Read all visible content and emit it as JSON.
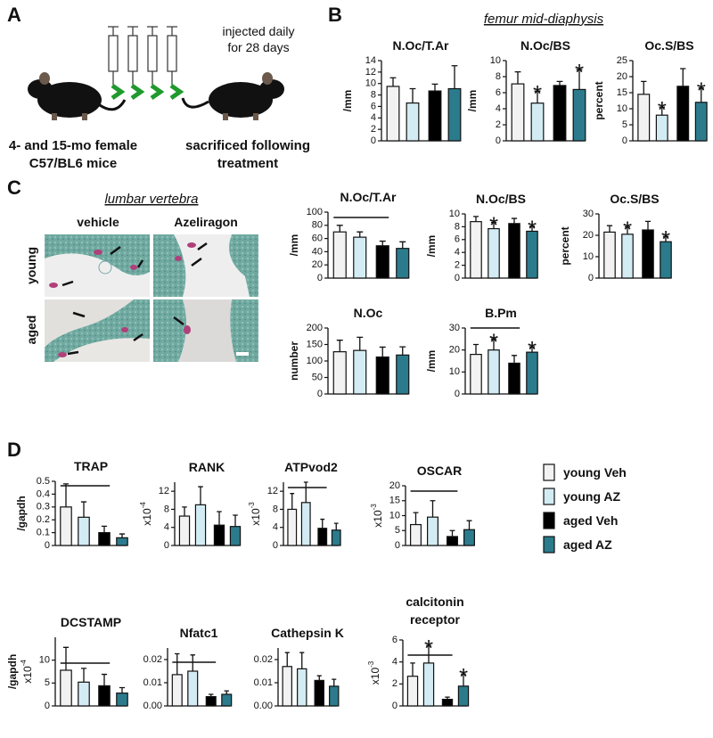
{
  "panel_labels": [
    "A",
    "B",
    "C",
    "D"
  ],
  "panel_a": {
    "injection": [
      "injected daily",
      "for 28 days"
    ],
    "mice": [
      "4- and 15-mo female",
      "C57/BL6 mice"
    ],
    "endpoint": [
      "sacrificed following",
      "treatment"
    ]
  },
  "panel_b": {
    "heading": "femur mid-diaphysis"
  },
  "panel_c": {
    "heading": "lumbar vertebra",
    "columns": [
      "vehicle",
      "Azeliragon"
    ],
    "rows": [
      "young",
      "aged"
    ]
  },
  "legend": [
    {
      "name": "young Veh",
      "color": "#f2f2f2"
    },
    {
      "name": "young AZ",
      "color": "#d3ecf4"
    },
    {
      "name": "aged Veh",
      "color": "#000000"
    },
    {
      "name": "aged AZ",
      "color": "#2b7b8c"
    }
  ],
  "chart_data": [
    {
      "type": "bar",
      "title": "N.Oc/T.Ar",
      "ylabel": "/mm",
      "ylim": [
        0,
        14
      ],
      "yticks": [
        0,
        2,
        4,
        6,
        8,
        10,
        12,
        14
      ],
      "values": [
        9.5,
        6.6,
        8.7,
        9.1
      ],
      "errors": [
        1.5,
        2.5,
        1.2,
        4.0
      ]
    },
    {
      "type": "bar",
      "title": "N.Oc/BS",
      "ylabel": "/mm",
      "ylim": [
        0,
        10
      ],
      "yticks": [
        0,
        2,
        4,
        6,
        8,
        10
      ],
      "values": [
        7.1,
        4.7,
        6.9,
        6.4
      ],
      "errors": [
        1.5,
        1.5,
        0.5,
        2.5
      ],
      "stars": [
        null,
        "*",
        null,
        "*"
      ]
    },
    {
      "type": "bar",
      "title": "Oc.S/BS",
      "ylabel": "percent",
      "ylim": [
        0,
        25
      ],
      "yticks": [
        0,
        5,
        10,
        15,
        20,
        25
      ],
      "values": [
        14.5,
        8,
        17,
        12
      ],
      "errors": [
        4,
        2.5,
        5.5,
        4.5
      ],
      "stars": [
        null,
        "*",
        null,
        "*"
      ]
    },
    {
      "type": "bar",
      "title": "N.Oc/T.Ar",
      "ylabel": "/mm",
      "ylim": [
        0,
        100
      ],
      "yticks": [
        0,
        20,
        40,
        60,
        80,
        100
      ],
      "values": [
        70,
        62,
        49,
        45
      ],
      "errors": [
        10,
        8,
        7,
        10
      ]
    },
    {
      "type": "bar",
      "title": "N.Oc/BS",
      "ylabel": "/mm",
      "ylim": [
        0,
        10
      ],
      "yticks": [
        0,
        2,
        4,
        6,
        8,
        10
      ],
      "values": [
        8.8,
        7.7,
        8.5,
        7.3
      ],
      "errors": [
        0.8,
        1,
        0.8,
        0.8
      ],
      "stars": [
        null,
        "*",
        null,
        "*"
      ]
    },
    {
      "type": "bar",
      "title": "Oc.S/BS",
      "ylabel": "percent",
      "ylim": [
        0,
        30
      ],
      "yticks": [
        0,
        10,
        20,
        30
      ],
      "values": [
        21.5,
        20.5,
        22.5,
        17
      ],
      "errors": [
        3,
        3.5,
        4,
        2.5
      ],
      "stars": [
        null,
        "*",
        null,
        "*"
      ]
    },
    {
      "type": "bar",
      "title": "N.Oc",
      "ylabel": "number",
      "ylim": [
        0,
        200
      ],
      "yticks": [
        0,
        50,
        100,
        150,
        200
      ],
      "values": [
        128,
        132,
        112,
        118
      ],
      "errors": [
        35,
        40,
        30,
        25
      ]
    },
    {
      "type": "bar",
      "title": "B.Pm",
      "ylabel": "/mm",
      "ylim": [
        0,
        30
      ],
      "yticks": [
        0,
        10,
        20,
        30
      ],
      "values": [
        18,
        20,
        14,
        19
      ],
      "errors": [
        4.5,
        5,
        3.5,
        2.5
      ],
      "stars": [
        null,
        "*",
        null,
        "*"
      ]
    },
    {
      "type": "bar",
      "title": "TRAP",
      "ylabel": "/gapdh",
      "ylim": [
        0,
        0.5
      ],
      "yticks": [
        0,
        0.1,
        0.2,
        0.3,
        0.4,
        0.5
      ],
      "values": [
        0.3,
        0.22,
        0.1,
        0.06
      ],
      "errors": [
        0.18,
        0.12,
        0.05,
        0.03
      ]
    },
    {
      "type": "bar",
      "title": "RANK",
      "scale": {
        "base": "x10",
        "exp": "-4"
      },
      "ylim": [
        0,
        14
      ],
      "yticks": [
        0,
        4,
        8,
        12
      ],
      "values": [
        6.5,
        9,
        4.5,
        4.2
      ],
      "errors": [
        2,
        4,
        3,
        2.5
      ]
    },
    {
      "type": "bar",
      "title": "ATPvod2",
      "scale": {
        "base": "x10",
        "exp": "-3"
      },
      "ylim": [
        0,
        14
      ],
      "yticks": [
        0,
        4,
        8,
        12
      ],
      "values": [
        8,
        9.5,
        3.8,
        3.4
      ],
      "errors": [
        3.5,
        4.5,
        2,
        1.5
      ]
    },
    {
      "type": "bar",
      "title": "OSCAR",
      "scale": {
        "base": "x10",
        "exp": "-3"
      },
      "ylim": [
        0,
        20
      ],
      "yticks": [
        0,
        5,
        10,
        15,
        20
      ],
      "values": [
        7,
        9.5,
        3,
        5.3
      ],
      "errors": [
        4,
        5.5,
        2,
        3
      ]
    },
    {
      "type": "bar",
      "title": "DCSTAMP",
      "ylabel": "/gapdh",
      "scale": {
        "base": "x10",
        "exp": "-4"
      },
      "ylim": [
        0,
        15
      ],
      "yticks": [
        0,
        5,
        10
      ],
      "values": [
        7.8,
        5.2,
        4.4,
        2.8
      ],
      "errors": [
        5,
        3,
        2.5,
        1.2
      ]
    },
    {
      "type": "bar",
      "title": "Nfatc1",
      "ylim": [
        0,
        0.025
      ],
      "yticks": [
        {
          "value": 0,
          "label": "0.00"
        },
        {
          "value": 0.01,
          "label": "0.01"
        },
        {
          "value": 0.02,
          "label": "0.02"
        }
      ],
      "values": [
        0.0135,
        0.015,
        0.004,
        0.005
      ],
      "errors": [
        0.009,
        0.007,
        0.001,
        0.0015
      ]
    },
    {
      "type": "bar",
      "title": "Cathepsin K",
      "ylim": [
        0,
        0.025
      ],
      "yticks": [
        {
          "value": 0,
          "label": "0.00"
        },
        {
          "value": 0.01,
          "label": "0.01"
        },
        {
          "value": 0.02,
          "label": "0.02"
        }
      ],
      "values": [
        0.017,
        0.016,
        0.011,
        0.0085
      ],
      "errors": [
        0.006,
        0.007,
        0.002,
        0.003
      ]
    },
    {
      "type": "bar",
      "title": [
        "calcitonin",
        "receptor"
      ],
      "scale": {
        "base": "x10",
        "exp": "-3"
      },
      "ylim": [
        0,
        6
      ],
      "yticks": [
        0,
        2,
        4,
        6
      ],
      "values": [
        2.7,
        3.9,
        0.6,
        1.8
      ],
      "errors": [
        1.2,
        1.6,
        0.2,
        1.1
      ],
      "stars": [
        null,
        "*",
        null,
        "*"
      ]
    }
  ]
}
